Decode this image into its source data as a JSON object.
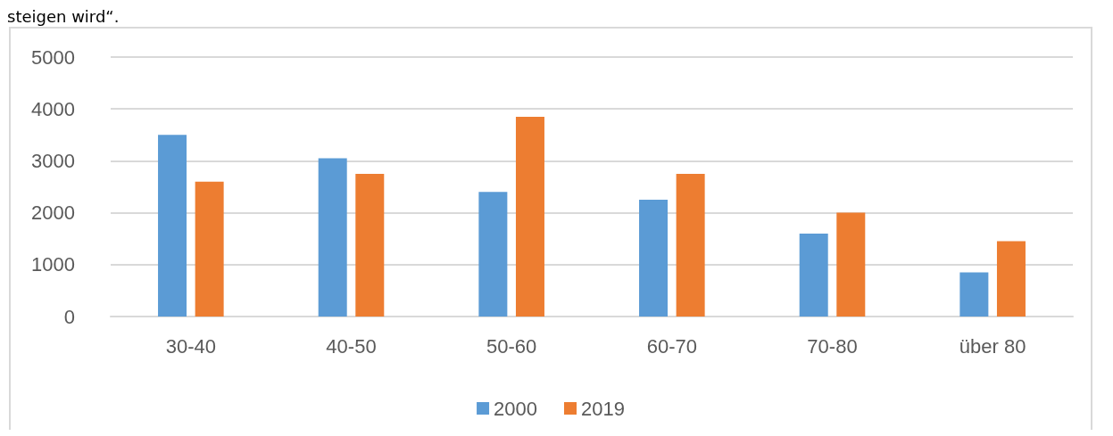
{
  "chart_data": {
    "type": "bar",
    "annotations": [
      "steigen wird“."
    ],
    "categories": [
      "30-40",
      "40-50",
      "50-60",
      "60-70",
      "70-80",
      "über 80"
    ],
    "series": [
      {
        "name": "2000",
        "color": "#5b9bd5",
        "values": [
          3500,
          3050,
          2400,
          2250,
          1600,
          850
        ]
      },
      {
        "name": "2019",
        "color": "#ed7d31",
        "values": [
          2600,
          2750,
          3850,
          2750,
          2000,
          1450
        ]
      }
    ],
    "ylim": [
      0,
      5000
    ],
    "yticks": [
      0,
      1000,
      2000,
      3000,
      4000,
      5000
    ],
    "grid": "y",
    "legend": "bottom"
  }
}
